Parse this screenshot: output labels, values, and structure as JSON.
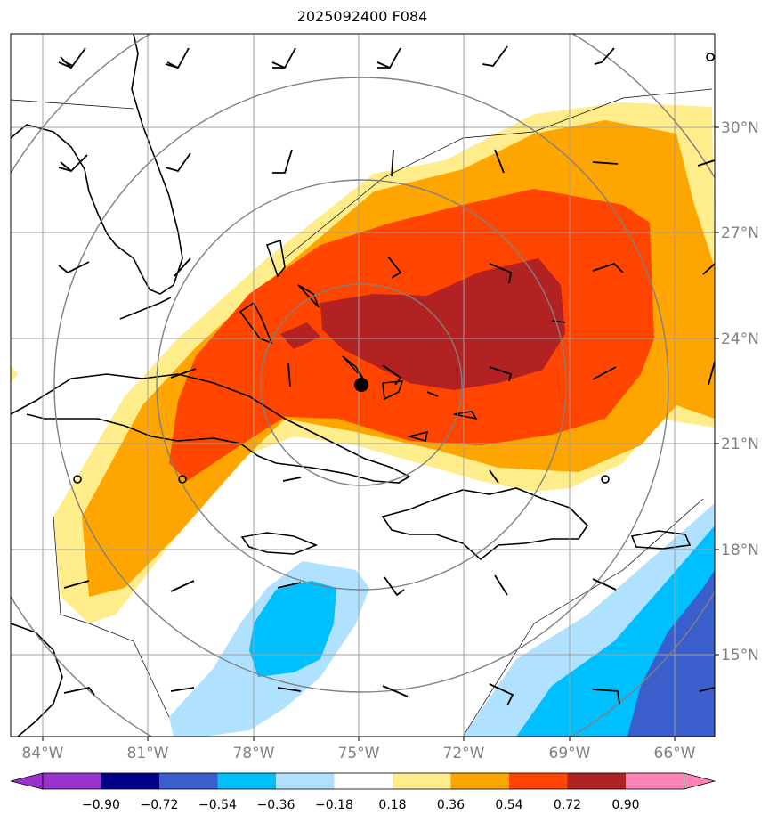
{
  "title": "2025092400 F084",
  "map": {
    "lon_labels": [
      "84°W",
      "81°W",
      "78°W",
      "75°W",
      "72°W",
      "69°W",
      "66°W"
    ],
    "lat_labels": [
      "30°N",
      "27°N",
      "24°N",
      "21°N",
      "18°N",
      "15°N"
    ],
    "center_marker": {
      "lon": -75.0,
      "lat": 22.5
    }
  },
  "colorbar": {
    "ticks": [
      "−0.90",
      "−0.72",
      "−0.54",
      "−0.36",
      "−0.18",
      "0.18",
      "0.36",
      "0.54",
      "0.72",
      "0.90"
    ],
    "colors": [
      "#9a32cd",
      "#00008b",
      "#3a5fcd",
      "#00bfff",
      "#b0e2ff",
      "#ffffff",
      "#ffec8b",
      "#ffa500",
      "#ff4500",
      "#b22222",
      "#ff83b4"
    ]
  },
  "colors": {
    "very_high": "#b22222",
    "high": "#ff4500",
    "mid": "#ffa500",
    "low": "#ffec8b",
    "neg_low": "#b0e2ff",
    "neg_mid": "#00bfff",
    "neg_high": "#3a5fcd",
    "grid": "#a0a0a0",
    "rings": "#808080"
  }
}
